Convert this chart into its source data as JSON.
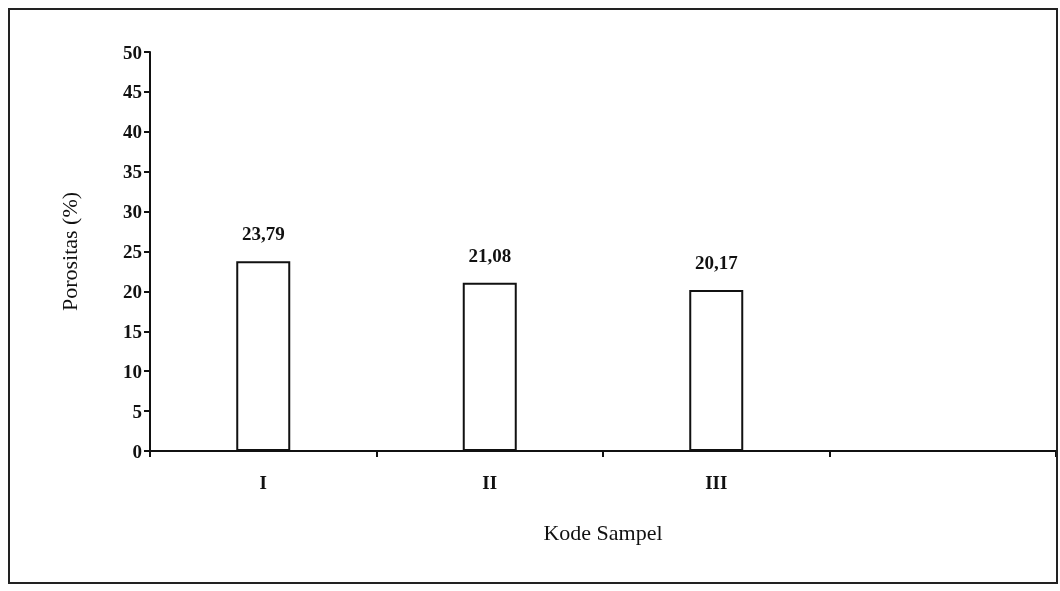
{
  "chart_data": {
    "type": "bar",
    "xlabel": "Kode Sampel",
    "ylabel": "Porositas (%)",
    "categories": [
      "I",
      "II",
      "III",
      null
    ],
    "values": [
      23.79,
      21.08,
      20.17,
      null
    ],
    "value_labels": [
      "23,79",
      "21,08",
      "20,17",
      null
    ],
    "color": "#ffffff",
    "ylim": [
      0,
      50
    ],
    "yticks": [
      0,
      5,
      10,
      15,
      20,
      25,
      30,
      35,
      40,
      45,
      50
    ],
    "grid": false
  }
}
